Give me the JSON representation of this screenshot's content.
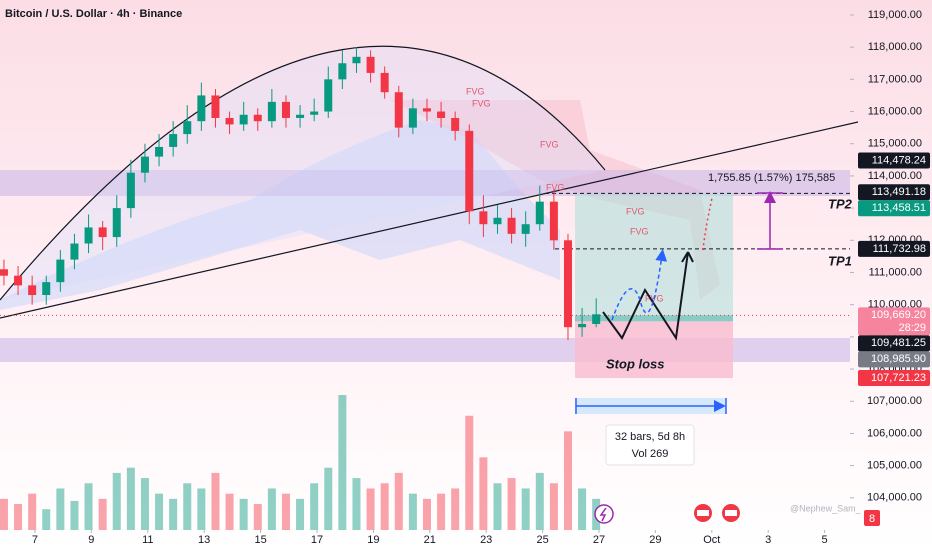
{
  "chart_data": {
    "type": "candlestick",
    "title": "Bitcoin / U.S. Dollar · 4h · Binance",
    "x": [
      5.9,
      6.4,
      6.9,
      7.4,
      7.9,
      8.4,
      8.9,
      9.4,
      9.9,
      10.4,
      10.9,
      11.4,
      11.9,
      12.4,
      12.9,
      13.4,
      13.9,
      14.4,
      14.9,
      15.4,
      15.9,
      16.4,
      16.9,
      17.4,
      17.9,
      18.4,
      18.9,
      19.4,
      19.9,
      20.4,
      20.9,
      21.4,
      21.9,
      22.4,
      22.9,
      23.4,
      23.9,
      24.4,
      24.9,
      25.4,
      25.9,
      26.4,
      26.9
    ],
    "open": [
      111100,
      110900,
      110600,
      110300,
      110700,
      111400,
      111900,
      112400,
      112100,
      113000,
      114100,
      114600,
      114900,
      115300,
      115700,
      116500,
      115800,
      115600,
      115900,
      115700,
      116300,
      115800,
      115900,
      116000,
      117000,
      117500,
      117700,
      117200,
      116600,
      115500,
      116100,
      116000,
      115800,
      115400,
      112900,
      112500,
      112700,
      112200,
      112500,
      113200,
      112000,
      109300,
      109400
    ],
    "high": [
      111400,
      111200,
      110900,
      110900,
      111700,
      112200,
      112800,
      112600,
      113400,
      114500,
      115000,
      115300,
      115700,
      116200,
      116900,
      116700,
      116000,
      116300,
      116100,
      116700,
      116500,
      116200,
      116400,
      117400,
      117900,
      118000,
      117900,
      117400,
      116800,
      116400,
      116400,
      116300,
      116000,
      115600,
      113400,
      113100,
      113000,
      112900,
      113700,
      113600,
      112200,
      109900,
      110200
    ],
    "low": [
      110600,
      110300,
      110000,
      110000,
      110400,
      111100,
      111600,
      111700,
      111800,
      112700,
      113800,
      114300,
      114600,
      115000,
      115400,
      115500,
      115300,
      115400,
      115400,
      115500,
      115500,
      115500,
      115700,
      115800,
      116700,
      117200,
      116900,
      116400,
      115200,
      115300,
      115700,
      115500,
      115100,
      112500,
      112100,
      112200,
      111900,
      111800,
      112300,
      111700,
      108900,
      109000,
      109300
    ],
    "close": [
      110900,
      110600,
      110300,
      110700,
      111400,
      111900,
      112400,
      112100,
      113000,
      114100,
      114600,
      114900,
      115300,
      115700,
      116500,
      115800,
      115600,
      115900,
      115700,
      116300,
      115800,
      115900,
      116000,
      117000,
      117500,
      117700,
      117200,
      116600,
      115500,
      116100,
      116000,
      115800,
      115400,
      112900,
      112500,
      112700,
      112200,
      112500,
      113200,
      112000,
      109300,
      109400,
      109700
    ],
    "volume": [
      30,
      25,
      35,
      20,
      40,
      28,
      45,
      30,
      55,
      60,
      50,
      35,
      30,
      45,
      40,
      55,
      35,
      30,
      25,
      40,
      35,
      30,
      45,
      60,
      130,
      50,
      40,
      45,
      55,
      35,
      30,
      35,
      40,
      110,
      70,
      45,
      50,
      40,
      55,
      45,
      95,
      40,
      30
    ],
    "up_color": "#089981",
    "down_color": "#f23645",
    "xlim": [
      5.76,
      35.9
    ],
    "xticks": [
      7,
      9,
      11,
      13,
      15,
      17,
      19,
      21,
      23,
      25,
      27,
      29,
      {
        "value": 31,
        "label": "Oct"
      },
      {
        "value": 33,
        "label": "3"
      },
      {
        "value": 35,
        "label": "5"
      }
    ],
    "ylim": [
      103000,
      119465
    ],
    "yticks": [
      {
        "value": 104000,
        "label": "104,000.00"
      },
      {
        "value": 105000,
        "label": "105,000.00"
      },
      {
        "value": 106000,
        "label": "106,000.00"
      },
      {
        "value": 107000,
        "label": "107,000.00"
      },
      {
        "value": 108000,
        "label": "108,000.00"
      },
      {
        "value": 109000,
        "label": "109,000.00"
      },
      {
        "value": 110000,
        "label": "110,000.00"
      },
      {
        "value": 111000,
        "label": "111,000.00"
      },
      {
        "value": 112000,
        "label": "112,000.00"
      },
      {
        "value": 113000,
        "label": "113,000.00"
      },
      {
        "value": 114000,
        "label": "114,000.00"
      },
      {
        "value": 115000,
        "label": "115,000.00"
      },
      {
        "value": 116000,
        "label": "116,000.00"
      },
      {
        "value": 117000,
        "label": "117,000.00"
      },
      {
        "value": 118000,
        "label": "118,000.00"
      },
      {
        "value": 119000,
        "label": "119,000.00"
      }
    ],
    "price_tags": [
      {
        "value": 114478.24,
        "label": "114,478.24",
        "color": "#131722"
      },
      {
        "value": 113491.18,
        "label": "113,491.18",
        "color": "#131722"
      },
      {
        "value": 113458.51,
        "label": "113,458.51",
        "color": "#089981"
      },
      {
        "value": 111732.98,
        "label": "111,732.98",
        "color": "#131722"
      },
      {
        "value": 109669.2,
        "label": "109,669.20",
        "color": "#f7849f"
      },
      {
        "value": 109481.25,
        "label": "109,481.25",
        "color": "#131722"
      },
      {
        "value": 108985.9,
        "label": "108,985.90",
        "color": "#787b86"
      },
      {
        "value": 107721.23,
        "label": "107,721.23",
        "color": "#f23645"
      }
    ],
    "countdown": "28:29",
    "measure_label": "1,755.85 (1.57%) 175,585",
    "targets": [
      "TP2",
      "TP1"
    ],
    "stop_label": "Stop loss",
    "range_label": [
      "32 bars, 5d 8h",
      "Vol 269"
    ],
    "fvg_labels": [
      "FVG",
      "FVG",
      "FVG",
      "FVG",
      "FVG",
      "FVG",
      "FVG"
    ],
    "watermark": "@Nephew_Sam_",
    "badge": "8"
  }
}
